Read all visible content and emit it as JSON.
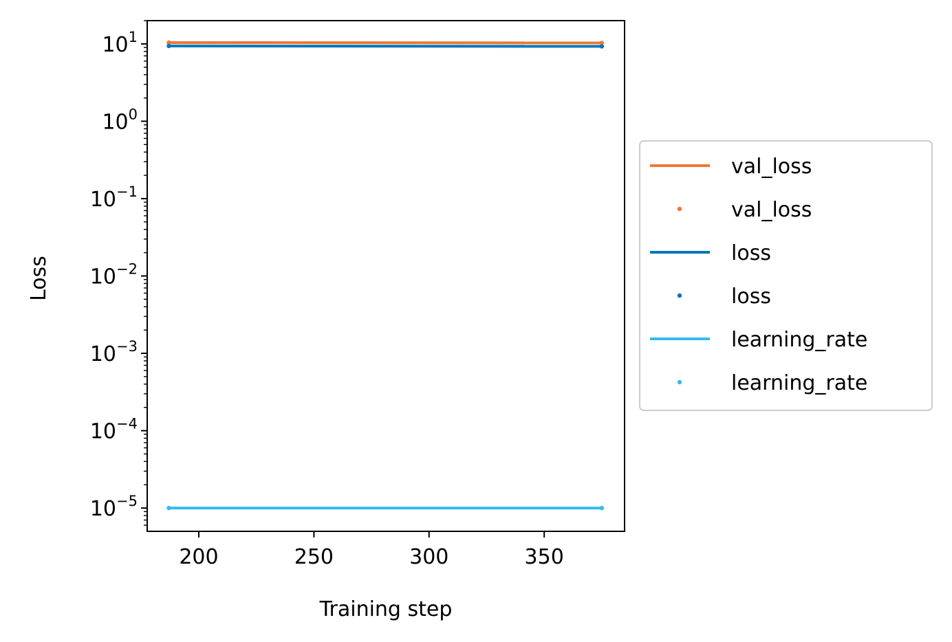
{
  "chart_data": {
    "type": "line",
    "title": "",
    "xlabel": "Training step",
    "ylabel": "Loss",
    "x_scale": "linear",
    "y_scale": "log",
    "xlim": [
      177.6,
      384.9
    ],
    "ylim": [
      5e-06,
      20.0
    ],
    "x_ticks": [
      200,
      250,
      300,
      350
    ],
    "x_tick_labels": [
      "200",
      "250",
      "300",
      "350"
    ],
    "y_ticks": [
      {
        "value": 10.0,
        "base": "10",
        "exp": "1"
      },
      {
        "value": 1.0,
        "base": "10",
        "exp": "0"
      },
      {
        "value": 0.1,
        "base": "10",
        "exp": "−1"
      },
      {
        "value": 0.01,
        "base": "10",
        "exp": "−2"
      },
      {
        "value": 0.001,
        "base": "10",
        "exp": "−3"
      },
      {
        "value": 0.0001,
        "base": "10",
        "exp": "−4"
      },
      {
        "value": 1e-05,
        "base": "10",
        "exp": "−5"
      }
    ],
    "grid": false,
    "legend_position": "outside-right",
    "series": [
      {
        "name": "val_loss",
        "color": "#EE7733",
        "x": [
          187,
          375
        ],
        "y": [
          10.4,
          10.3
        ]
      },
      {
        "name": "loss",
        "color": "#0077BB",
        "x": [
          187,
          375
        ],
        "y": [
          9.4,
          9.3
        ]
      },
      {
        "name": "learning_rate",
        "color": "#33BBEE",
        "x": [
          187,
          375
        ],
        "y": [
          1e-05,
          1e-05
        ]
      }
    ],
    "legend": [
      {
        "label": "val_loss",
        "marker": "line",
        "color": "#EE7733"
      },
      {
        "label": "val_loss",
        "marker": "dot",
        "color": "#EE7733"
      },
      {
        "label": "loss",
        "marker": "line",
        "color": "#0077BB"
      },
      {
        "label": "loss",
        "marker": "dot",
        "color": "#0077BB"
      },
      {
        "label": "learning_rate",
        "marker": "line",
        "color": "#33BBEE"
      },
      {
        "label": "learning_rate",
        "marker": "dot",
        "color": "#33BBEE"
      }
    ]
  }
}
